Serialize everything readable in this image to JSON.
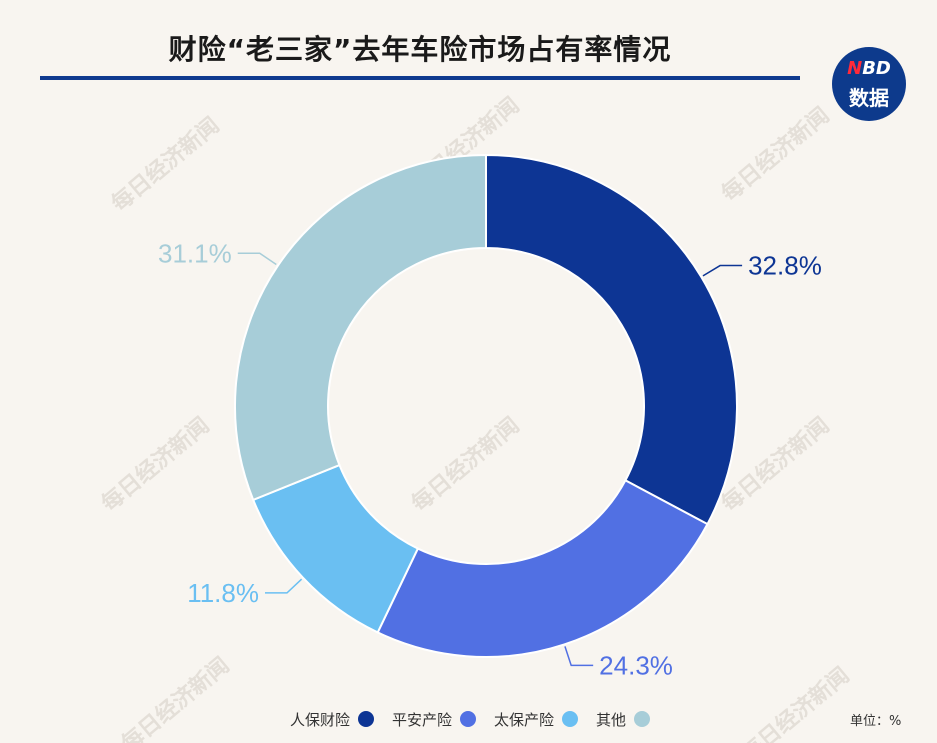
{
  "header": {
    "title": "财险“老三家”去年车险市场占有率情况",
    "logo_text_top": "NBD",
    "logo_text_top_accent": "N",
    "logo_text_top_rest": "BD",
    "logo_text_bottom": "数据",
    "logo_color": "#0d3a8c",
    "logo_accent_color": "#ff2a3a"
  },
  "watermark_text": "每日经济新闻",
  "unit_label": "单位：%",
  "chart_data": {
    "type": "pie",
    "donut": true,
    "title": "财险“老三家”去年车险市场占有率情况",
    "unit": "%",
    "start_angle": "12 o'clock, clockwise",
    "legend_position": "bottom",
    "series": [
      {
        "name": "人保财险",
        "value": 32.8,
        "label": "32.8%",
        "color": "#0d3594"
      },
      {
        "name": "平安产险",
        "value": 24.3,
        "label": "24.3%",
        "color": "#5170e3"
      },
      {
        "name": "太保产险",
        "value": 11.8,
        "label": "11.8%",
        "color": "#6abff2"
      },
      {
        "name": "其他",
        "value": 31.1,
        "label": "31.1%",
        "color": "#a7cdd8"
      }
    ]
  }
}
